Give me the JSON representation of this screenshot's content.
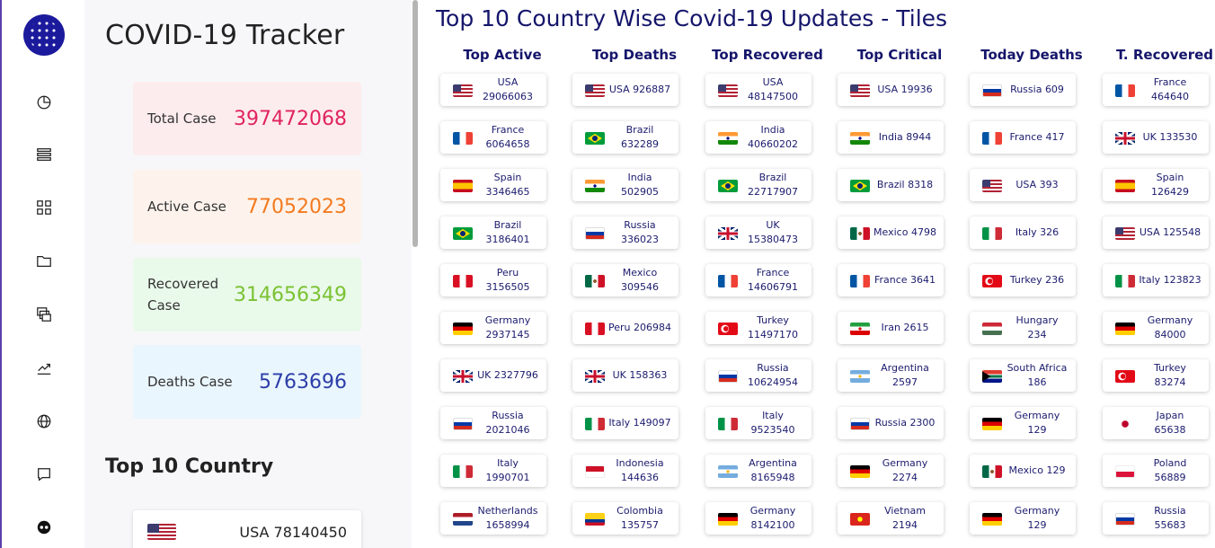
{
  "app": {
    "title": "COVID-19 Tracker",
    "icons": [
      "covid-logo-icon",
      "pie-chart-icon",
      "list-icon",
      "grid-icon",
      "folder-icon",
      "layers-icon",
      "trend-icon",
      "globe-icon",
      "comment-icon",
      "mask-icon"
    ]
  },
  "stats": {
    "total": {
      "label": "Total Case",
      "value": "397472068",
      "color": "#e0245e"
    },
    "active": {
      "label": "Active Case",
      "value": "77052023",
      "color": "#f47a1f"
    },
    "recovered": {
      "label": "Recovered Case",
      "value": "314656349",
      "color": "#7bc232"
    },
    "deaths": {
      "label": "Deaths Case",
      "value": "5763696",
      "color": "#2c3ea8"
    }
  },
  "top10": {
    "title": "Top 10 Country",
    "first_row": "USA 78140450"
  },
  "main": {
    "title": "Top 10 Country Wise Covid-19 Updates - Tiles",
    "columns": [
      {
        "head": "Top Active",
        "tiles": [
          {
            "country": "usa",
            "line1": "USA",
            "line2": "29066063"
          },
          {
            "country": "france",
            "line1": "France",
            "line2": "6064658"
          },
          {
            "country": "spain",
            "line1": "Spain",
            "line2": "3346465"
          },
          {
            "country": "brazil",
            "line1": "Brazil",
            "line2": "3186401"
          },
          {
            "country": "peru",
            "line1": "Peru",
            "line2": "3156505"
          },
          {
            "country": "germany",
            "line1": "Germany",
            "line2": "2937145"
          },
          {
            "country": "uk",
            "line1": "UK 2327796",
            "line2": ""
          },
          {
            "country": "russia",
            "line1": "Russia",
            "line2": "2021046"
          },
          {
            "country": "italy",
            "line1": "Italy",
            "line2": "1990701"
          },
          {
            "country": "netherlands",
            "line1": "Netherlands",
            "line2": "1658994"
          }
        ]
      },
      {
        "head": "Top Deaths",
        "tiles": [
          {
            "country": "usa",
            "line1": "USA 926887",
            "line2": ""
          },
          {
            "country": "brazil",
            "line1": "Brazil",
            "line2": "632289"
          },
          {
            "country": "india",
            "line1": "India",
            "line2": "502905"
          },
          {
            "country": "russia",
            "line1": "Russia",
            "line2": "336023"
          },
          {
            "country": "mexico",
            "line1": "Mexico",
            "line2": "309546"
          },
          {
            "country": "peru",
            "line1": "Peru 206984",
            "line2": ""
          },
          {
            "country": "uk",
            "line1": "UK 158363",
            "line2": ""
          },
          {
            "country": "italy",
            "line1": "Italy 149097",
            "line2": ""
          },
          {
            "country": "indonesia",
            "line1": "Indonesia",
            "line2": "144636"
          },
          {
            "country": "colombia",
            "line1": "Colombia",
            "line2": "135757"
          }
        ]
      },
      {
        "head": "Top Recovered",
        "tiles": [
          {
            "country": "usa",
            "line1": "USA",
            "line2": "48147500"
          },
          {
            "country": "india",
            "line1": "India",
            "line2": "40660202"
          },
          {
            "country": "brazil",
            "line1": "Brazil",
            "line2": "22717907"
          },
          {
            "country": "uk",
            "line1": "UK",
            "line2": "15380473"
          },
          {
            "country": "france",
            "line1": "France",
            "line2": "14606791"
          },
          {
            "country": "turkey",
            "line1": "Turkey",
            "line2": "11497170"
          },
          {
            "country": "russia",
            "line1": "Russia",
            "line2": "10624954"
          },
          {
            "country": "italy",
            "line1": "Italy",
            "line2": "9523540"
          },
          {
            "country": "argentina",
            "line1": "Argentina",
            "line2": "8165948"
          },
          {
            "country": "germany",
            "line1": "Germany",
            "line2": "8142100"
          }
        ]
      },
      {
        "head": "Top Critical",
        "tiles": [
          {
            "country": "usa",
            "line1": "USA 19936",
            "line2": ""
          },
          {
            "country": "india",
            "line1": "India 8944",
            "line2": ""
          },
          {
            "country": "brazil",
            "line1": "Brazil 8318",
            "line2": ""
          },
          {
            "country": "mexico",
            "line1": "Mexico 4798",
            "line2": ""
          },
          {
            "country": "france",
            "line1": "France 3641",
            "line2": ""
          },
          {
            "country": "iran",
            "line1": "Iran 2615",
            "line2": ""
          },
          {
            "country": "argentina",
            "line1": "Argentina",
            "line2": "2597"
          },
          {
            "country": "russia",
            "line1": "Russia 2300",
            "line2": ""
          },
          {
            "country": "germany",
            "line1": "Germany",
            "line2": "2274"
          },
          {
            "country": "vietnam",
            "line1": "Vietnam",
            "line2": "2194"
          }
        ]
      },
      {
        "head": "Today Deaths",
        "tiles": [
          {
            "country": "russia",
            "line1": "Russia 609",
            "line2": ""
          },
          {
            "country": "france",
            "line1": "France 417",
            "line2": ""
          },
          {
            "country": "usa",
            "line1": "USA 393",
            "line2": ""
          },
          {
            "country": "italy",
            "line1": "Italy 326",
            "line2": ""
          },
          {
            "country": "turkey",
            "line1": "Turkey 236",
            "line2": ""
          },
          {
            "country": "hungary",
            "line1": "Hungary",
            "line2": "234"
          },
          {
            "country": "southafrica",
            "line1": "South Africa",
            "line2": "186"
          },
          {
            "country": "germany",
            "line1": "Germany",
            "line2": "129"
          },
          {
            "country": "mexico",
            "line1": "Mexico 129",
            "line2": ""
          },
          {
            "country": "germany",
            "line1": "Germany",
            "line2": "129"
          }
        ]
      },
      {
        "head": "T. Recovered",
        "tiles": [
          {
            "country": "france",
            "line1": "France",
            "line2": "464640"
          },
          {
            "country": "uk",
            "line1": "UK 133530",
            "line2": ""
          },
          {
            "country": "spain",
            "line1": "Spain",
            "line2": "126429"
          },
          {
            "country": "usa",
            "line1": "USA 125548",
            "line2": ""
          },
          {
            "country": "italy",
            "line1": "Italy 123823",
            "line2": ""
          },
          {
            "country": "germany",
            "line1": "Germany",
            "line2": "84000"
          },
          {
            "country": "turkey",
            "line1": "Turkey",
            "line2": "83274"
          },
          {
            "country": "japan",
            "line1": "Japan",
            "line2": "65638"
          },
          {
            "country": "poland",
            "line1": "Poland",
            "line2": "56889"
          },
          {
            "country": "russia",
            "line1": "Russia",
            "line2": "55683"
          }
        ]
      }
    ]
  }
}
